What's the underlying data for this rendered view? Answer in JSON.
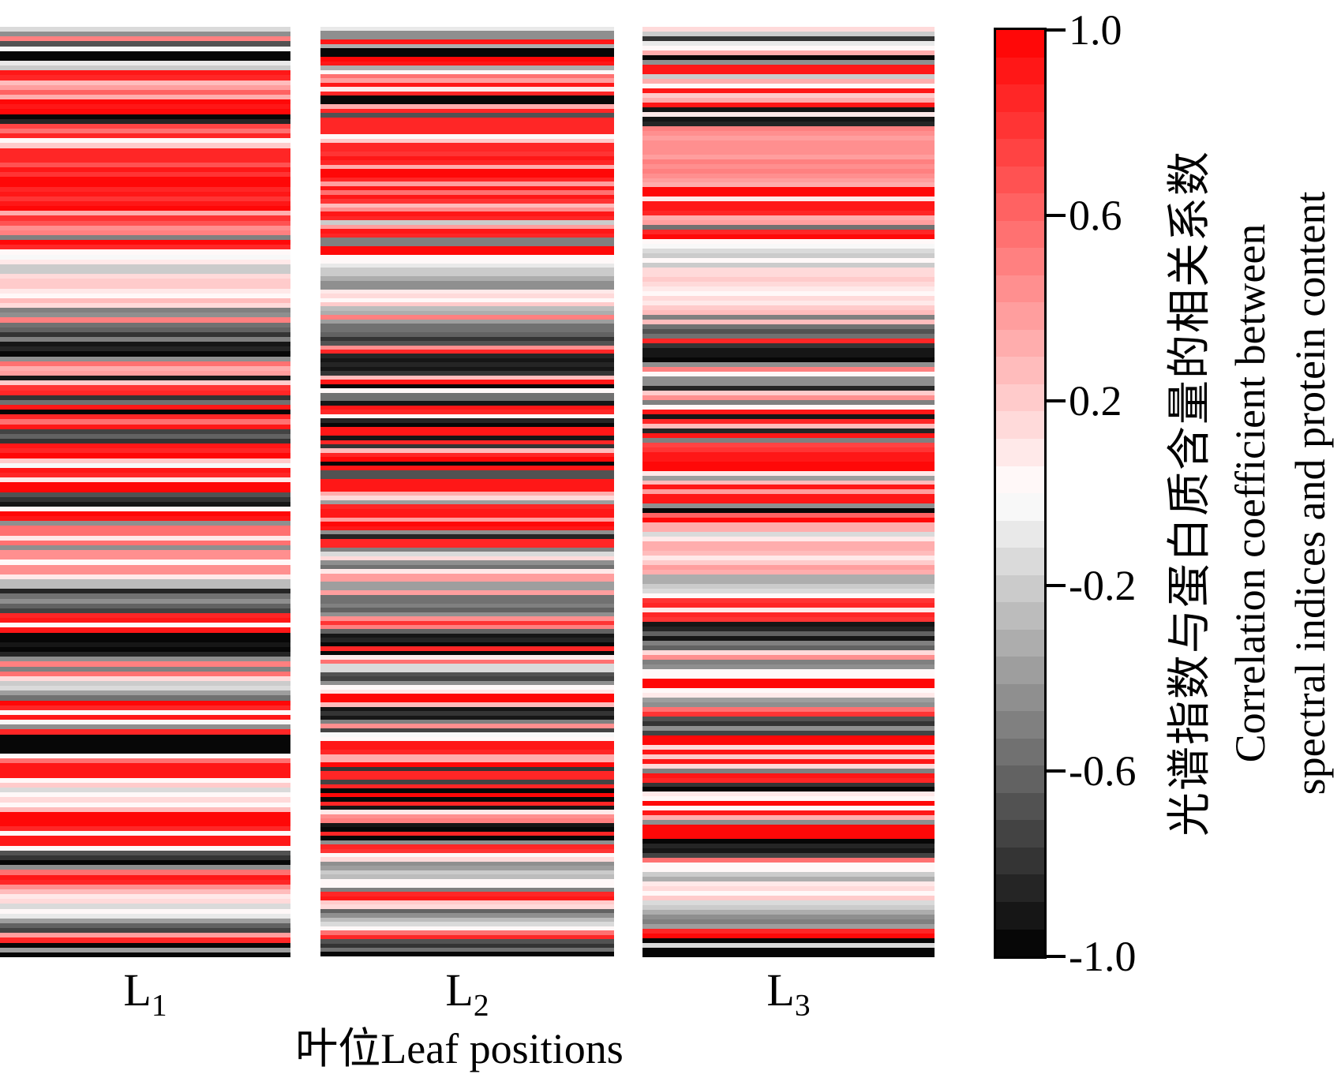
{
  "figure": {
    "background": "#ffffff"
  },
  "xaxis": {
    "label": "叶位Leaf positions",
    "categories": [
      {
        "base": "L",
        "sub": "1"
      },
      {
        "base": "L",
        "sub": "2"
      },
      {
        "base": "L",
        "sub": "3"
      }
    ]
  },
  "colorbar": {
    "min": -1.0,
    "max": 1.0,
    "segments": 34,
    "tick_labels": [
      "1.0",
      "0.6",
      "0.2",
      "-0.2",
      "-0.6",
      "-1.0"
    ],
    "tick_values": [
      1.0,
      0.6,
      0.2,
      -0.2,
      -0.6,
      -1.0
    ],
    "max_color": "#ff0000",
    "mid_color": "#ffffff",
    "min_color": "#000000",
    "label_zh": "光谱指数与蛋白质含量的相关系数",
    "label_en_line1": "Correlation coefficient between",
    "label_en_line2": "spectral indices and protein content"
  },
  "chart_data": {
    "type": "heatmap",
    "title": "",
    "xlabel": "叶位Leaf positions",
    "ylabel": "光谱指数与蛋白质含量的相关系数 Correlation coefficient between spectral indices and protein content",
    "categories": [
      "L1",
      "L2",
      "L3"
    ],
    "value_range": [
      -1.0,
      1.0
    ],
    "colormap": "red-white-black",
    "legend_position": "right-colorbar",
    "grid": false,
    "series": [
      {
        "name": "L1",
        "values": [
          -0.15,
          -0.45,
          0.5,
          -0.65,
          0,
          -1,
          -1,
          -0.08,
          -0.2,
          0.9,
          0.85,
          0.25,
          0.4,
          0.6,
          0.3,
          0.95,
          0.9,
          1,
          -0.95,
          -0.85,
          0.75,
          0.55,
          0.85,
          0.05,
          0.2,
          0.85,
          0.85,
          0.85,
          0.65,
          0.9,
          0.8,
          0.95,
          0.97,
          0.85,
          0.93,
          0.78,
          0.9,
          1,
          0.35,
          0.8,
          0.7,
          0.45,
          0.52,
          -0.5,
          0.95,
          0.88,
          0.04,
          0,
          0.06,
          -0.22,
          -0.22,
          0.15,
          0.18,
          0.22,
          0.07,
          0.03,
          0.28,
          0.15,
          -0.48,
          -0.42,
          0.5,
          -0.55,
          -0.6,
          -0.8,
          -0.5,
          -0.92,
          -0.88,
          -0.97,
          -0.45,
          0.55,
          0.32,
          0.36,
          -0.94,
          0.2,
          0.82,
          0.85,
          -0.82,
          -0.56,
          0.9,
          -1,
          0.85,
          0.58,
          0.93,
          -0.72,
          -0.62,
          -0.78,
          0.9,
          0.83,
          0.95,
          0.2,
          0,
          0.9,
          0.85,
          0.1,
          1,
          0.95,
          -0.7,
          -0.8,
          -0.93,
          0.02,
          0.95,
          0.9,
          -0.47,
          0.55,
          0.55,
          0.08,
          0.58,
          -0.46,
          0.42,
          0.42,
          0.04,
          0.45,
          0.45,
          0.1,
          -0.28,
          -0.24,
          -0.85,
          -0.54,
          -0.42,
          -0.6,
          -0.72,
          0.85,
          0.9,
          0.03,
          0.92,
          -0.98,
          -0.98,
          -0.9,
          -0.95,
          -0.87,
          -0.43,
          0.5,
          -0.5,
          0.55,
          0.15,
          -0.18,
          -0.14,
          -0.4,
          -0.57,
          0.95,
          0.88,
          0.02,
          0.9,
          -0.04,
          -0.45,
          0.85,
          -0.96,
          -0.96,
          -0.96,
          -1,
          0.02,
          0.53,
          0.93,
          0.94,
          0.9,
          0.03,
          0.18,
          -0.15,
          0.02,
          0.12,
          0.04,
          0.28,
          0.96,
          0.96,
          0.96,
          0.85,
          0.05,
          0.92,
          0.92,
          0.03,
          -0.65,
          -0.82,
          -0.97,
          -0.47,
          0.54,
          0.9,
          0.88,
          0.43,
          0.25,
          0.08,
          0.12,
          -0.16,
          0.03,
          -0.07,
          -0.4,
          -0.6,
          -0.73,
          0.38,
          0.87,
          -0.95,
          -0.4,
          -1
        ]
      },
      {
        "name": "L2",
        "values": [
          -0.08,
          -0.42,
          -0.42,
          0.9,
          -0.35,
          -1,
          -1,
          0.95,
          0.9,
          -0.32,
          0.02,
          0.55,
          0.38,
          0.9,
          0.06,
          0.85,
          -0.97,
          -0.97,
          0.33,
          0.85,
          -0.7,
          0.84,
          0.84,
          0.84,
          0.84,
          0.05,
          0.2,
          0.83,
          0.85,
          0.8,
          0.92,
          0.87,
          0.35,
          1,
          1,
          0.85,
          0.4,
          0.9,
          0.58,
          0.94,
          0.8,
          0.24,
          0.42,
          0.93,
          0.86,
          -0.2,
          0.36,
          0.9,
          0.84,
          -0.5,
          -0.5,
          0.95,
          0.95,
          0.01,
          0.03,
          -0.06,
          -0.2,
          -0.2,
          -0.33,
          -0.42,
          -0.46,
          0.07,
          0.14,
          0.05,
          0.2,
          -0.28,
          -0.3,
          0.48,
          -0.4,
          -0.53,
          -0.53,
          -0.6,
          -0.77,
          -0.65,
          0.45,
          0.85,
          -0.87,
          -0.94,
          -0.83,
          -0.9,
          -0.8,
          0.28,
          0.9,
          -0.96,
          0.03,
          -0.55,
          -0.55,
          -0.93,
          0.92,
          0.85,
          0.04,
          -0.84,
          -1,
          0.94,
          0.89,
          -0.94,
          0.86,
          -0.8,
          0.27,
          0.87,
          0.95,
          -1,
          0.9,
          -0.65,
          -0.68,
          0.92,
          0.92,
          0.92,
          0.3,
          0.15,
          -0.4,
          0.85,
          0.93,
          0.93,
          0.4,
          1,
          0.9,
          -0.42,
          -0.85,
          0.84,
          0.87,
          -0.5,
          -0.12,
          0.13,
          -0.42,
          -0.54,
          0.06,
          0.36,
          0.41,
          -0.4,
          -0.4,
          0.4,
          -0.58,
          -0.54,
          -0.48,
          -0.6,
          -0.42,
          0.47,
          0.78,
          0.52,
          -0.63,
          -0.9,
          -0.88,
          -0.97,
          0.88,
          -1,
          0.1,
          0.55,
          -0.13,
          -0.13,
          -0.66,
          -0.72,
          -0.47,
          0.02,
          0.07,
          0.95,
          0.95,
          0.25,
          -0.94,
          -0.8,
          -0.91,
          -0.5,
          0.45,
          -0.76,
          -0.05,
          0.02,
          0.94,
          0.94,
          0.87,
          0.32,
          0.32,
          0.95,
          -0.77,
          0.85,
          0.88,
          -0.74,
          0.84,
          -0.96,
          0.95,
          -1,
          0.88,
          -0.94,
          0.08,
          0.45,
          0.52,
          -0.89,
          -0.97,
          0.86,
          -1,
          -0.46,
          0.85,
          0.78,
          0.03,
          0.12,
          -0.42,
          -0.36,
          -0.2,
          -0.27,
          0.02,
          0.01,
          -0.5,
          0.86,
          0.9,
          0.2,
          0.15,
          -0.6,
          -0.42,
          -0.25,
          -0.13,
          0.02,
          0.56,
          0.86,
          -0.65,
          -0.8,
          -0.53,
          -0.95
        ]
      },
      {
        "name": "L3",
        "values": [
          0.15,
          -0.2,
          -0.8,
          -0.07,
          0.05,
          0.33,
          -0.97,
          -0.42,
          0.93,
          0.93,
          -0.22,
          0.3,
          0.02,
          0.9,
          0.23,
          0.32,
          0.94,
          -0.94,
          0.06,
          -0.9,
          -0.87,
          0.5,
          0.44,
          0.4,
          0.42,
          0.44,
          0.47,
          0.41,
          0.48,
          0.43,
          0.5,
          0.42,
          0.36,
          0.33,
          1,
          1,
          0.08,
          0.94,
          0.94,
          0.87,
          0.3,
          0.4,
          -0.54,
          0.85,
          0.95,
          0.01,
          -0.04,
          -0.13,
          -0.2,
          0.03,
          -0.22,
          0.17,
          0.14,
          0.18,
          0.15,
          0.07,
          0.03,
          0.14,
          0.1,
          0.23,
          0.27,
          -0.48,
          0.25,
          -0.58,
          -0.66,
          -0.54,
          0.87,
          -0.8,
          -0.92,
          -0.92,
          -1,
          -0.43,
          0.52,
          0.03,
          -0.46,
          -0.46,
          -0.83,
          0.22,
          0.47,
          -0.5,
          0.02,
          0.9,
          -0.9,
          0.88,
          0.28,
          -0.84,
          0.91,
          -0.5,
          0.72,
          0.8,
          0.9,
          0.9,
          0.95,
          0.96,
          0.06,
          -0.4,
          0.27,
          0.93,
          0.4,
          0.93,
          0.9,
          -0.42,
          -0.96,
          0.6,
          0.95,
          0.3,
          0.35,
          -0.12,
          0.06,
          0.32,
          0.32,
          0.26,
          0.08,
          0.22,
          0.4,
          0.33,
          -0.35,
          -0.35,
          -0.2,
          -0.14,
          0.02,
          0.82,
          0.84,
          0.07,
          0.84,
          0.79,
          -0.94,
          -0.83,
          -0.6,
          -0.91,
          -0.5,
          -0.64,
          0.17,
          0.47,
          -0.48,
          -0.42,
          0.02,
          0.03,
          0.95,
          0.95,
          0.03,
          0.06,
          -0.36,
          -0.42,
          0.57,
          0.77,
          -0.65,
          -0.78,
          -0.44,
          -0.74,
          0.98,
          0.98,
          0.13,
          0.93,
          0.18,
          0.9,
          0.15,
          -0.5,
          0.92,
          0.87,
          -0.8,
          -0.95,
          0.07,
          0.04,
          0.95,
          0.03,
          0.94,
          0.35,
          -0.44,
          1,
          1,
          1,
          -1,
          -0.85,
          -0.91,
          -0.76,
          0.55,
          0.02,
          0.01,
          -0.2,
          -0.3,
          0.06,
          0.13,
          0.04,
          0.23,
          -0.13,
          -0.2,
          -0.31,
          -0.42,
          -0.48,
          -0.36,
          0.88,
          0.95,
          -1,
          -0.13,
          -0.97,
          -1
        ]
      }
    ]
  }
}
